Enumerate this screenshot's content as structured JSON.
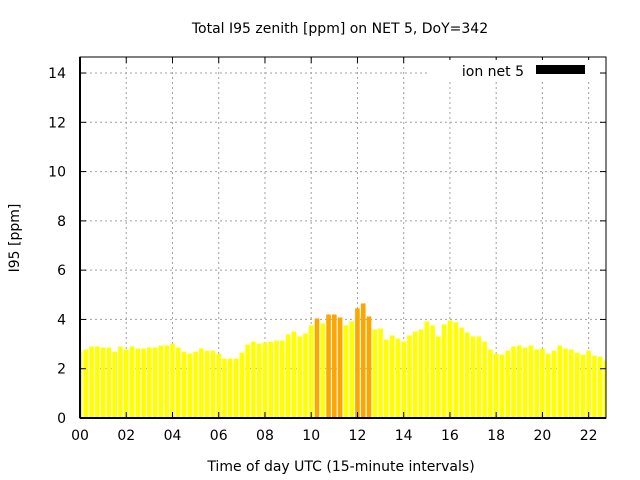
{
  "chart_data": {
    "type": "bar",
    "title": "Total I95 zenith [ppm] on NET 5, DoY=342",
    "xlabel": "Time of day UTC (15-minute intervals)",
    "ylabel": "I95 [ppm]",
    "xlim": [
      0,
      22.75
    ],
    "ylim": [
      0,
      14.65
    ],
    "x_ticks": [
      0,
      2,
      4,
      6,
      8,
      10,
      12,
      14,
      16,
      18,
      20,
      22
    ],
    "x_tick_labels": [
      "00",
      "02",
      "04",
      "06",
      "08",
      "10",
      "12",
      "14",
      "16",
      "18",
      "20",
      "22"
    ],
    "y_ticks": [
      0,
      2,
      4,
      6,
      8,
      10,
      12,
      14
    ],
    "y_tick_labels": [
      "0",
      "2",
      "4",
      "6",
      "8",
      "10",
      "12",
      "14"
    ],
    "grid": true,
    "legend": {
      "placement": "top-right",
      "entries": [
        {
          "label": "ion net 5",
          "color": "#000000"
        }
      ]
    },
    "bar_interval_hours": 0.25,
    "colors": {
      "normal": "#ffff00",
      "above_threshold": "#ffa500",
      "grid": "#a0a0a0",
      "axis": "#000000"
    },
    "threshold": 4,
    "values": [
      2.73,
      2.78,
      2.9,
      2.9,
      2.86,
      2.86,
      2.69,
      2.9,
      2.78,
      2.9,
      2.82,
      2.82,
      2.86,
      2.86,
      2.94,
      2.94,
      3.02,
      2.86,
      2.69,
      2.61,
      2.69,
      2.82,
      2.73,
      2.73,
      2.61,
      2.41,
      2.41,
      2.41,
      2.65,
      2.98,
      3.1,
      3.02,
      3.06,
      3.1,
      3.14,
      3.14,
      3.39,
      3.51,
      3.31,
      3.43,
      3.76,
      4.04,
      3.84,
      4.2,
      4.2,
      4.08,
      3.76,
      3.92,
      4.45,
      4.65,
      4.12,
      3.59,
      3.63,
      3.18,
      3.35,
      3.22,
      3.1,
      3.35,
      3.51,
      3.59,
      3.92,
      3.76,
      3.31,
      3.8,
      3.96,
      3.88,
      3.67,
      3.47,
      3.31,
      3.31,
      3.1,
      2.78,
      2.61,
      2.57,
      2.73,
      2.9,
      2.94,
      2.86,
      2.94,
      2.78,
      2.82,
      2.61,
      2.73,
      2.94,
      2.82,
      2.78,
      2.65,
      2.57,
      2.73,
      2.53,
      2.49,
      2.33
    ]
  }
}
